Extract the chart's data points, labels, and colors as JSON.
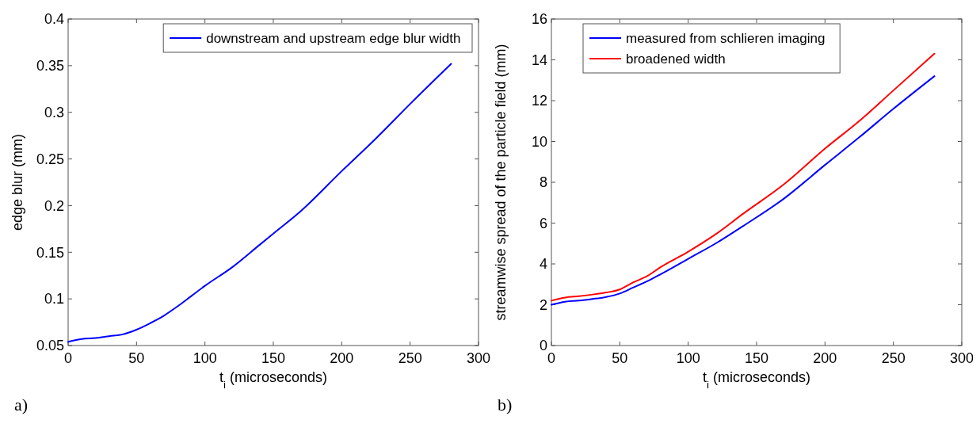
{
  "chart_data": [
    {
      "type": "line",
      "xlabel": "t$_{i}$ (microseconds)",
      "ylabel": "edge blur (mm)",
      "x": [
        0,
        10,
        20,
        30,
        40,
        50,
        60,
        70,
        80,
        90,
        100,
        120,
        140,
        150,
        170,
        200,
        225,
        250,
        280
      ],
      "xlim": [
        0,
        300
      ],
      "xticks": [
        0,
        50,
        100,
        150,
        200,
        250,
        300
      ],
      "ylim": [
        0.05,
        0.4
      ],
      "yticks": [
        0.05,
        0.1,
        0.15,
        0.2,
        0.25,
        0.3,
        0.35,
        0.4
      ],
      "grid": false,
      "legend": "top right",
      "annotations": [
        "a)"
      ],
      "series": [
        {
          "name": "downstream and upstream edge blur width",
          "color": "#0000ff",
          "values": [
            0.054,
            0.057,
            0.058,
            0.06,
            0.062,
            0.067,
            0.074,
            0.082,
            0.092,
            0.103,
            0.114,
            0.134,
            0.158,
            0.17,
            0.194,
            0.237,
            0.272,
            0.309,
            0.352
          ]
        }
      ]
    },
    {
      "type": "line",
      "xlabel": "t$_{i}$ (microseconds)",
      "ylabel": "streamwise spread of the particle field (mm)",
      "x": [
        0,
        10,
        20,
        30,
        40,
        50,
        60,
        70,
        80,
        100,
        120,
        140,
        170,
        200,
        225,
        250,
        280
      ],
      "xlim": [
        0,
        300
      ],
      "xticks": [
        0,
        50,
        100,
        150,
        200,
        250,
        300
      ],
      "ylim": [
        0,
        16
      ],
      "yticks": [
        0,
        2,
        4,
        6,
        8,
        10,
        12,
        14,
        16
      ],
      "grid": false,
      "legend": "top left",
      "annotations": [
        "b)"
      ],
      "series": [
        {
          "name": "measured from schlieren imaging",
          "color": "#0000ff",
          "values": [
            2.0,
            2.15,
            2.2,
            2.28,
            2.38,
            2.55,
            2.85,
            3.15,
            3.5,
            4.25,
            5.0,
            5.85,
            7.2,
            8.85,
            10.2,
            11.6,
            13.2
          ]
        },
        {
          "name": "broadened width",
          "color": "#ff0000",
          "values": [
            2.2,
            2.35,
            2.42,
            2.5,
            2.6,
            2.75,
            3.1,
            3.4,
            3.85,
            4.6,
            5.45,
            6.45,
            7.9,
            9.65,
            11.0,
            12.5,
            14.3
          ]
        }
      ]
    }
  ]
}
